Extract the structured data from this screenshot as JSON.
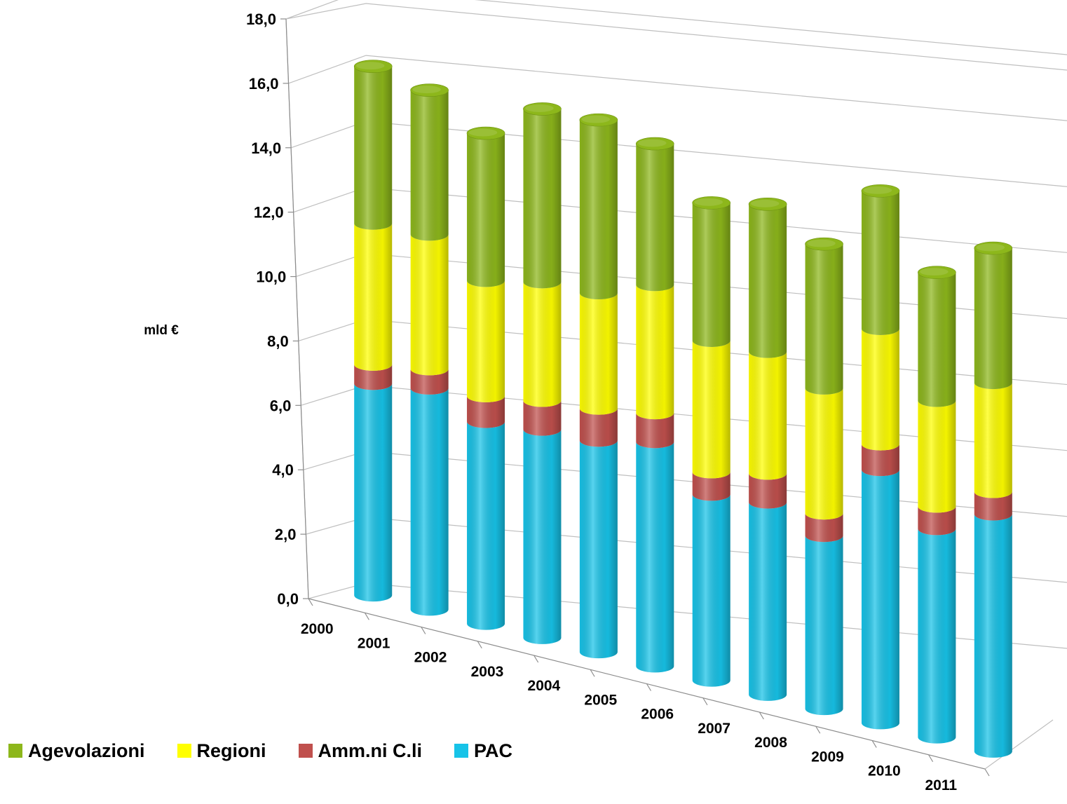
{
  "chart_data": {
    "type": "bar",
    "subtype": "stacked-3d-cylinder",
    "ylabel": "mld €",
    "ylim": [
      0,
      18
    ],
    "ytick_step": 2,
    "ytick_labels": [
      "0,0",
      "2,0",
      "4,0",
      "6,0",
      "8,0",
      "10,0",
      "12,0",
      "14,0",
      "16,0",
      "18,0"
    ],
    "grid": true,
    "legend_position": "bottom-left",
    "categories": [
      "2000",
      "2001",
      "2002",
      "2003",
      "2004",
      "2005",
      "2006",
      "2007",
      "2008",
      "2009",
      "2010",
      "2011"
    ],
    "series": [
      {
        "name": "PAC",
        "color": "#17c3e8",
        "values": [
          6.6,
          6.9,
          6.3,
          6.5,
          6.6,
          7.0,
          5.8,
          6.0,
          5.4,
          7.9,
          6.5,
          7.4
        ]
      },
      {
        "name": "Amm.ni C.li",
        "color": "#c0504d",
        "values": [
          0.6,
          0.6,
          0.8,
          0.9,
          1.0,
          0.9,
          0.7,
          0.9,
          0.7,
          0.8,
          0.7,
          0.7
        ]
      },
      {
        "name": "Regioni",
        "color": "#ffff00",
        "values": [
          4.4,
          4.2,
          3.6,
          3.7,
          3.6,
          4.0,
          4.1,
          3.8,
          3.9,
          3.6,
          3.3,
          3.4
        ]
      },
      {
        "name": "Agevolazioni",
        "color": "#8db71b",
        "values": [
          4.9,
          4.5,
          4.6,
          5.4,
          5.4,
          4.4,
          4.3,
          4.6,
          4.5,
          4.3,
          4.0,
          4.2
        ]
      }
    ]
  },
  "legend": [
    {
      "label": "Agevolazioni",
      "color": "#8db71b"
    },
    {
      "label": "Regioni",
      "color": "#ffff00"
    },
    {
      "label": "Amm.ni C.li",
      "color": "#c0504d"
    },
    {
      "label": "PAC",
      "color": "#17c3e8"
    }
  ]
}
